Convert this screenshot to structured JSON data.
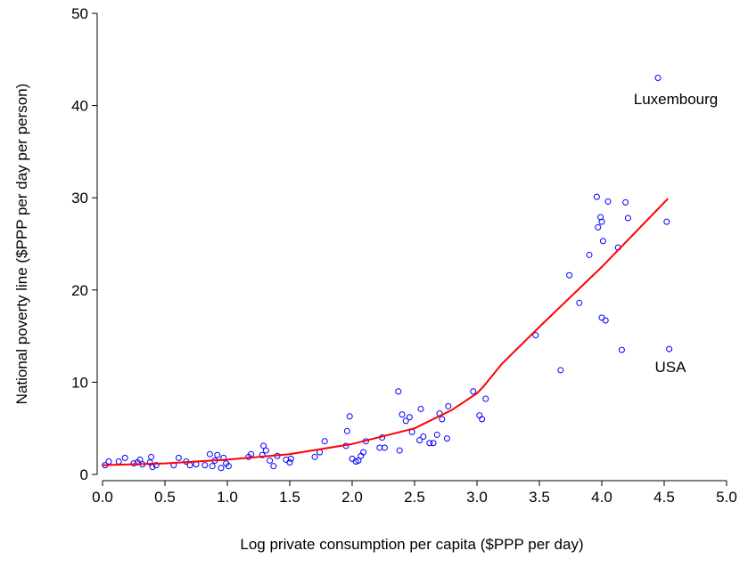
{
  "chart_data": {
    "type": "scatter",
    "x_label": "Log private consumption per capita ($PPP per day)",
    "y_label": "National poverty line ($PPP per day per person)",
    "xlim": [
      0,
      5
    ],
    "ylim": [
      0,
      50
    ],
    "xticks": [
      {
        "value": 0,
        "label": "0.0"
      },
      0.5,
      {
        "value": 1,
        "label": "1.0"
      },
      1.5,
      {
        "value": 2,
        "label": "2.0"
      },
      2.5,
      {
        "value": 3,
        "label": "3.0"
      },
      3.5,
      {
        "value": 4,
        "label": "4.0"
      },
      4.5,
      {
        "value": 5,
        "label": "5.0"
      }
    ],
    "yticks": [
      0,
      10,
      20,
      30,
      40,
      50
    ],
    "series": [
      {
        "type": "scatter",
        "color": "#0000ff",
        "x": [
          0.02,
          0.05,
          0.13,
          0.18,
          0.25,
          0.28,
          0.3,
          0.32,
          0.38,
          0.39,
          0.4,
          0.43,
          0.57,
          0.61,
          0.67,
          0.7,
          0.75,
          0.82,
          0.86,
          0.88,
          0.9,
          0.92,
          0.95,
          0.97,
          0.99,
          1.01,
          1.17,
          1.19,
          1.28,
          1.29,
          1.31,
          1.34,
          1.37,
          1.4,
          1.47,
          1.5,
          1.51,
          1.7,
          1.74,
          1.78,
          1.95,
          1.96,
          1.98,
          2.0,
          2.03,
          2.05,
          2.07,
          2.09,
          2.11,
          2.22,
          2.24,
          2.26,
          2.38,
          2.37,
          2.4,
          2.43,
          2.46,
          2.48,
          2.54,
          2.55,
          2.57,
          2.62,
          2.65,
          2.68,
          2.7,
          2.72,
          2.76,
          2.77,
          2.97,
          3.02,
          3.04,
          3.07,
          3.47,
          3.67,
          3.74,
          3.82,
          3.9,
          3.96,
          3.97,
          3.99,
          4.0,
          4.01,
          4.0,
          4.03,
          4.05,
          4.13,
          4.16,
          4.19,
          4.21,
          4.45,
          4.52,
          4.54
        ],
        "values": [
          1.0,
          1.4,
          1.4,
          1.8,
          1.2,
          1.3,
          1.6,
          1.1,
          1.3,
          1.9,
          0.8,
          1.0,
          1.0,
          1.8,
          1.4,
          1.0,
          1.1,
          1.0,
          2.2,
          0.9,
          1.5,
          2.1,
          0.7,
          1.8,
          1.2,
          0.9,
          1.9,
          2.2,
          2.1,
          3.1,
          2.6,
          1.5,
          0.9,
          2.0,
          1.6,
          1.3,
          1.7,
          1.9,
          2.4,
          3.6,
          3.1,
          4.7,
          6.3,
          1.7,
          1.4,
          1.5,
          2.0,
          2.4,
          3.6,
          2.9,
          4.0,
          2.9,
          2.6,
          9.0,
          6.5,
          5.8,
          6.2,
          4.6,
          3.7,
          7.1,
          4.1,
          3.4,
          3.4,
          4.3,
          6.6,
          6.0,
          3.9,
          7.4,
          9.0,
          6.4,
          6.0,
          8.2,
          15.1,
          11.3,
          21.6,
          18.6,
          23.8,
          30.1,
          26.8,
          27.9,
          27.4,
          25.3,
          17.0,
          16.7,
          29.6,
          24.6,
          13.5,
          29.5,
          27.8,
          43.0,
          27.4,
          13.6
        ]
      },
      {
        "type": "line",
        "color": "#ff0000",
        "x": [
          0,
          0.5,
          1.0,
          1.5,
          2.0,
          2.5,
          2.8,
          3.0,
          3.05,
          3.2,
          3.5,
          4.0,
          4.53
        ],
        "values": [
          1.0,
          1.2,
          1.6,
          2.2,
          3.3,
          5.0,
          7.0,
          8.8,
          9.5,
          12.0,
          16.0,
          22.5,
          29.9
        ]
      }
    ],
    "annotations": [
      {
        "text": "Luxembourg"
      },
      {
        "text": "USA"
      }
    ]
  }
}
